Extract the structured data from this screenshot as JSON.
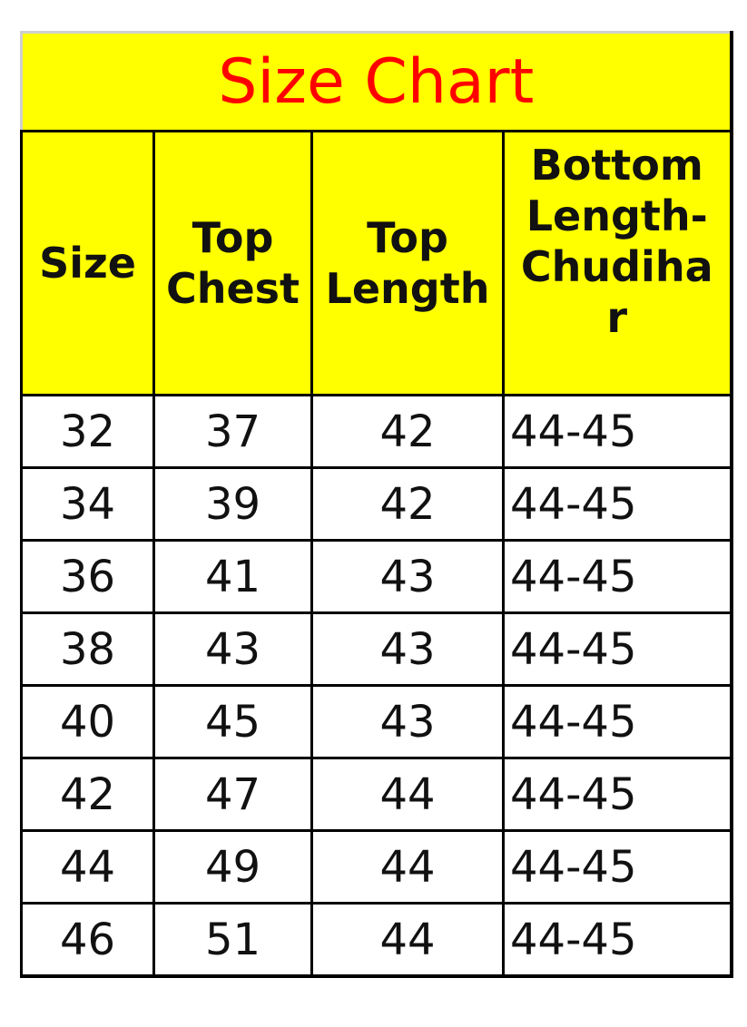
{
  "title": "Size Chart",
  "colors": {
    "header_bg": "#ffff00",
    "title_text": "#ff0000"
  },
  "chart_data": {
    "type": "table",
    "title": "Size Chart",
    "columns": [
      "Size",
      "Top Chest",
      "Top Length",
      "Bottom Length-Chudihar"
    ],
    "rows": [
      [
        "32",
        "37",
        "42",
        "44-45"
      ],
      [
        "34",
        "39",
        "42",
        "44-45"
      ],
      [
        "36",
        "41",
        "43",
        "44-45"
      ],
      [
        "38",
        "43",
        "43",
        "44-45"
      ],
      [
        "40",
        "45",
        "43",
        "44-45"
      ],
      [
        "42",
        "47",
        "44",
        "44-45"
      ],
      [
        "44",
        "49",
        "44",
        "44-45"
      ],
      [
        "46",
        "51",
        "44",
        "44-45"
      ]
    ]
  },
  "header_lines": {
    "size": "Size",
    "chest": [
      "Top",
      "Chest"
    ],
    "length": [
      "Top",
      "Length"
    ],
    "bottom": [
      "Bottom",
      "Length-",
      "Chudiha",
      "r"
    ]
  }
}
